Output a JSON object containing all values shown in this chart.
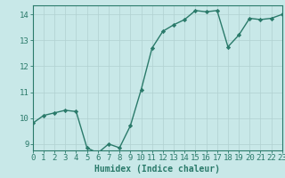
{
  "x": [
    0,
    1,
    2,
    3,
    4,
    5,
    6,
    7,
    8,
    9,
    10,
    11,
    12,
    13,
    14,
    15,
    16,
    17,
    18,
    19,
    20,
    21,
    22,
    23
  ],
  "y": [
    9.8,
    10.1,
    10.2,
    10.3,
    10.25,
    8.85,
    8.65,
    9.0,
    8.85,
    9.7,
    11.1,
    12.7,
    13.35,
    13.6,
    13.8,
    14.15,
    14.1,
    14.15,
    12.75,
    13.2,
    13.85,
    13.8,
    13.85,
    14.0
  ],
  "line_color": "#2a7a6a",
  "marker": "D",
  "markersize": 2.2,
  "linewidth": 1.0,
  "bg_color": "#c8e8e8",
  "grid_color": "#b0d0d0",
  "grid_color_major": "#c0d8d8",
  "xlabel": "Humidex (Indice chaleur)",
  "xlim": [
    0,
    23
  ],
  "ylim": [
    8.75,
    14.35
  ],
  "yticks": [
    9,
    10,
    11,
    12,
    13,
    14
  ],
  "xticks": [
    0,
    1,
    2,
    3,
    4,
    5,
    6,
    7,
    8,
    9,
    10,
    11,
    12,
    13,
    14,
    15,
    16,
    17,
    18,
    19,
    20,
    21,
    22,
    23
  ],
  "tick_color": "#2a7a6a",
  "label_color": "#2a7a6a",
  "fontsize_xlabel": 7.0,
  "fontsize_ticks": 6.5
}
